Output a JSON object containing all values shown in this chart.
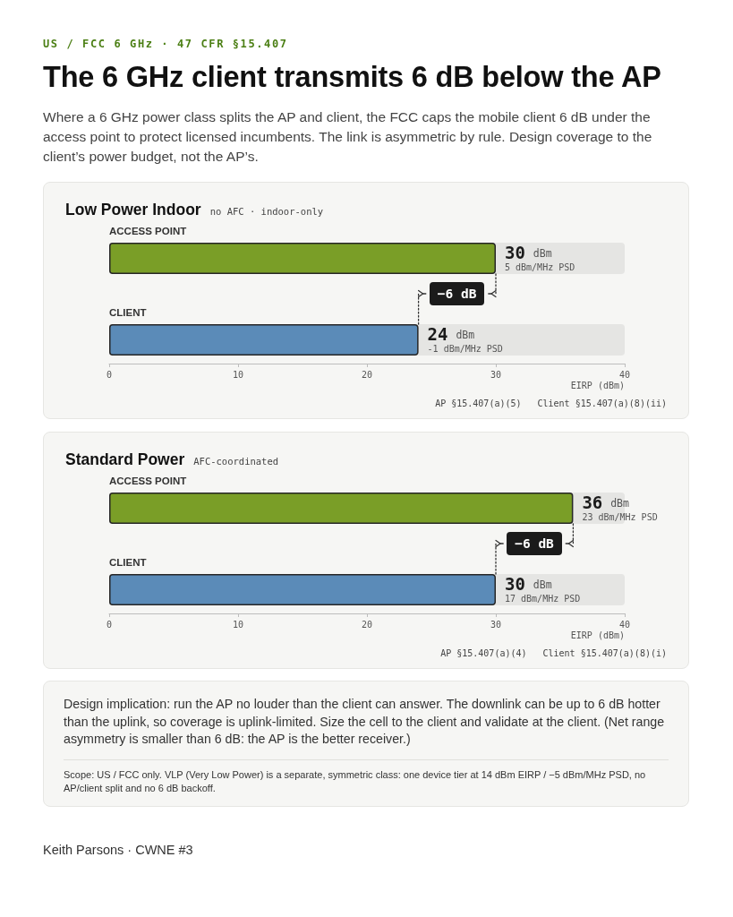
{
  "chart_data": [
    {
      "type": "other",
      "annotations": [
        "US / FCC 6 GHz · 47 CFR §15.407"
      ],
      "title": "The 6 GHz client transmits 6 dB below the AP",
      "subtitle": "Where a 6 GHz power class splits the AP and client, the FCC caps the mobile client 6 dB under the access point to protect licensed incumbents. The link is asymmetric by rule. Design coverage to the client’s power budget, not the AP’s."
    },
    {
      "type": "bar",
      "orientation": "horizontal",
      "title": "Low Power Indoor",
      "subtitle": "no AFC · indoor-only",
      "categories": [
        "ACCESS POINT",
        "CLIENT"
      ],
      "values": [
        30,
        24
      ],
      "colors": [
        "#7a9e27",
        "#5b8bb8"
      ],
      "value_labels": [
        "30 dBm",
        "24 dBm"
      ],
      "xlim": [
        0,
        40
      ],
      "xticks": [
        0,
        10,
        20,
        30,
        40
      ],
      "xlabel": "EIRP (dBm)",
      "annotations": [
        {
          "text": "5 dBm/MHz PSD",
          "x": 30,
          "y": "ACCESS POINT"
        },
        {
          "text": "-1 dBm/MHz PSD",
          "x": 24,
          "y": "CLIENT"
        },
        "−6 dB",
        "AP §15.407(a)(5)",
        "Client §15.407(a)(8)(ii)"
      ]
    },
    {
      "type": "bar",
      "orientation": "horizontal",
      "title": "Standard Power",
      "subtitle": "AFC-coordinated",
      "categories": [
        "ACCESS POINT",
        "CLIENT"
      ],
      "values": [
        36,
        30
      ],
      "colors": [
        "#7a9e27",
        "#5b8bb8"
      ],
      "value_labels": [
        "36 dBm",
        "30 dBm"
      ],
      "xlim": [
        0,
        40
      ],
      "xticks": [
        0,
        10,
        20,
        30,
        40
      ],
      "xlabel": "EIRP (dBm)",
      "annotations": [
        {
          "text": "23 dBm/MHz PSD",
          "x": 36,
          "y": "ACCESS POINT"
        },
        {
          "text": "17 dBm/MHz PSD",
          "x": 30,
          "y": "CLIENT"
        },
        "−6 dB",
        "AP §15.407(a)(4)",
        "Client §15.407(a)(8)(i)"
      ]
    },
    {
      "type": "other",
      "annotations": [
        "Design implication: run the AP no louder than the client can answer. The downlink can be up to 6 dB hotter than the uplink, so coverage is uplink-limited. Size the cell to the client and validate at the client. (Net range asymmetry is smaller than 6 dB: the AP is the better receiver.)",
        "Scope: US / FCC only. VLP (Very Low Power) is a separate, symmetric class: one device tier at 14 dBm EIRP / −5 dBm/MHz PSD, no AP/client split and no 6 dB backoff.",
        "Keith Parsons · CWNE #3"
      ]
    }
  ]
}
